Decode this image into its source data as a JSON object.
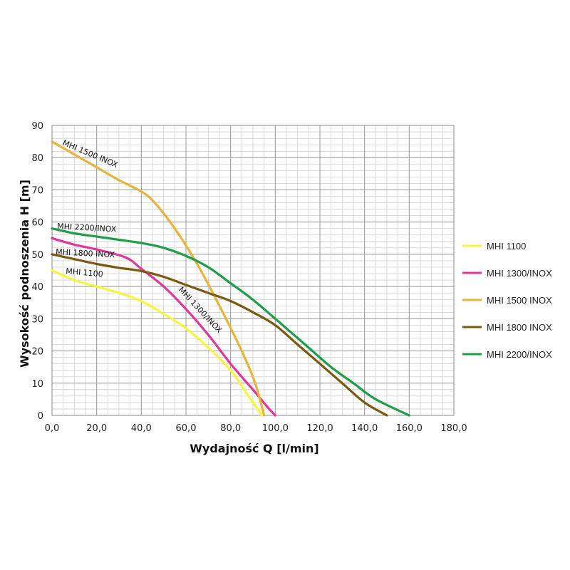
{
  "chart_data": {
    "type": "line",
    "xlabel": "Wydajność Q [l/min]",
    "ylabel": "Wysokość podnoszenia H [m]",
    "xlim": [
      0,
      180
    ],
    "ylim": [
      0,
      90
    ],
    "x_ticks": [
      "0,0",
      "20,0",
      "40,0",
      "60,0",
      "80,0",
      "100,0",
      "120,0",
      "140,0",
      "160,0",
      "180,0"
    ],
    "y_ticks": [
      "0",
      "10",
      "20",
      "30",
      "40",
      "50",
      "60",
      "70",
      "80",
      "90"
    ],
    "grid": true,
    "legend_position": "right",
    "series": [
      {
        "name": "MHI 1100",
        "color": "#f5f542",
        "points": [
          [
            0,
            45
          ],
          [
            10,
            42
          ],
          [
            20,
            40
          ],
          [
            30,
            38
          ],
          [
            40,
            35.5
          ],
          [
            50,
            31.5
          ],
          [
            60,
            27
          ],
          [
            70,
            21
          ],
          [
            80,
            14
          ],
          [
            88,
            6
          ],
          [
            94,
            0
          ]
        ]
      },
      {
        "name": "MHI 1300/INOX",
        "color": "#e0379b",
        "points": [
          [
            0,
            55
          ],
          [
            10,
            53
          ],
          [
            20,
            51.5
          ],
          [
            33,
            49
          ],
          [
            40,
            45.5
          ],
          [
            50,
            40
          ],
          [
            60,
            33
          ],
          [
            70,
            25
          ],
          [
            80,
            16
          ],
          [
            90,
            8
          ],
          [
            96,
            3
          ],
          [
            100,
            0
          ]
        ]
      },
      {
        "name": "MHI 1500 INOX",
        "color": "#e8b43c",
        "points": [
          [
            0,
            85
          ],
          [
            10,
            81
          ],
          [
            20,
            77
          ],
          [
            30,
            73
          ],
          [
            40,
            69.5
          ],
          [
            46,
            66
          ],
          [
            55,
            58
          ],
          [
            65,
            47
          ],
          [
            75,
            34
          ],
          [
            85,
            20
          ],
          [
            91,
            10
          ],
          [
            95,
            0
          ]
        ]
      },
      {
        "name": "MHI 1800 INOX",
        "color": "#7a5a10",
        "points": [
          [
            0,
            50
          ],
          [
            10,
            48.5
          ],
          [
            20,
            47
          ],
          [
            30,
            45.8
          ],
          [
            40,
            44.8
          ],
          [
            50,
            43
          ],
          [
            60,
            40.5
          ],
          [
            70,
            38
          ],
          [
            80,
            35.5
          ],
          [
            90,
            32
          ],
          [
            100,
            28
          ],
          [
            110,
            22
          ],
          [
            120,
            16
          ],
          [
            130,
            10
          ],
          [
            140,
            4
          ],
          [
            150,
            0
          ]
        ]
      },
      {
        "name": "MHI 2200/INOX",
        "color": "#1f9e4a",
        "points": [
          [
            0,
            58
          ],
          [
            10,
            56.5
          ],
          [
            20,
            55.5
          ],
          [
            30,
            54.5
          ],
          [
            40,
            53.5
          ],
          [
            50,
            52
          ],
          [
            60,
            49.5
          ],
          [
            70,
            46
          ],
          [
            80,
            41
          ],
          [
            88,
            37
          ],
          [
            95,
            33
          ],
          [
            105,
            27
          ],
          [
            115,
            21
          ],
          [
            125,
            15
          ],
          [
            135,
            10
          ],
          [
            145,
            5
          ],
          [
            160,
            0
          ]
        ]
      }
    ],
    "annotations": [
      {
        "text": "MHI 1500 INOX",
        "series": 2
      },
      {
        "text": "MHI 2200/INOX",
        "series": 4
      },
      {
        "text": "MHI 1800 INOX",
        "series": 3
      },
      {
        "text": "MHI 1100",
        "series": 0
      },
      {
        "text": "MHI 1300/INOX",
        "series": 1
      }
    ]
  }
}
